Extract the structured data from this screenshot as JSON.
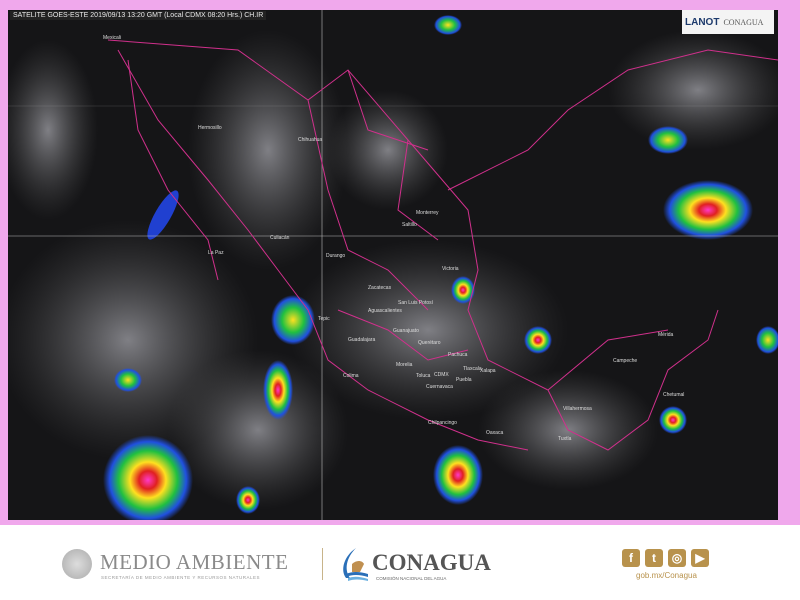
{
  "header": {
    "caption": "SATELITE GOES-ESTE 2019/09/13 13:20 GMT (Local CDMX 08:20 Hrs.) CH.IR"
  },
  "logos": {
    "lanot": "LANOT",
    "conagua_small": "CONAGUA"
  },
  "cities": [
    {
      "name": "Mexicali"
    },
    {
      "name": "Hermosillo"
    },
    {
      "name": "Chihuahua"
    },
    {
      "name": "La Paz"
    },
    {
      "name": "Culiacán"
    },
    {
      "name": "Durango"
    },
    {
      "name": "Monterrey"
    },
    {
      "name": "Saltillo"
    },
    {
      "name": "Zacatecas"
    },
    {
      "name": "Tepic"
    },
    {
      "name": "Aguascalientes"
    },
    {
      "name": "San Luis Potosí"
    },
    {
      "name": "Guadalajara"
    },
    {
      "name": "Guanajuato"
    },
    {
      "name": "Querétaro"
    },
    {
      "name": "Colima"
    },
    {
      "name": "Morelia"
    },
    {
      "name": "Toluca"
    },
    {
      "name": "CDMX"
    },
    {
      "name": "Pachuca"
    },
    {
      "name": "Tlaxcala"
    },
    {
      "name": "Puebla"
    },
    {
      "name": "Cuernavaca"
    },
    {
      "name": "Xalapa"
    },
    {
      "name": "Victoria"
    },
    {
      "name": "Chilpancingo"
    },
    {
      "name": "Oaxaca"
    },
    {
      "name": "Villahermosa"
    },
    {
      "name": "Tuxtla"
    },
    {
      "name": "Campeche"
    },
    {
      "name": "Mérida"
    },
    {
      "name": "Chetumal"
    }
  ],
  "footer": {
    "medio_ambiente": "MEDIO AMBIENTE",
    "medio_ambiente_sub": "SECRETARÍA DE MEDIO AMBIENTE Y RECURSOS NATURALES",
    "conagua": "CONAGUA",
    "conagua_sub": "COMISIÓN NACIONAL DEL AGUA",
    "social": [
      {
        "icon": "facebook-icon",
        "glyph": "f"
      },
      {
        "icon": "twitter-icon",
        "glyph": "t"
      },
      {
        "icon": "instagram-icon",
        "glyph": "◎"
      },
      {
        "icon": "youtube-icon",
        "glyph": "▶"
      }
    ],
    "url": "gob.mx/Conagua"
  },
  "colors": {
    "border": "#f0a8ec",
    "boundaries": "#d0308c",
    "accent": "#b8924c"
  }
}
